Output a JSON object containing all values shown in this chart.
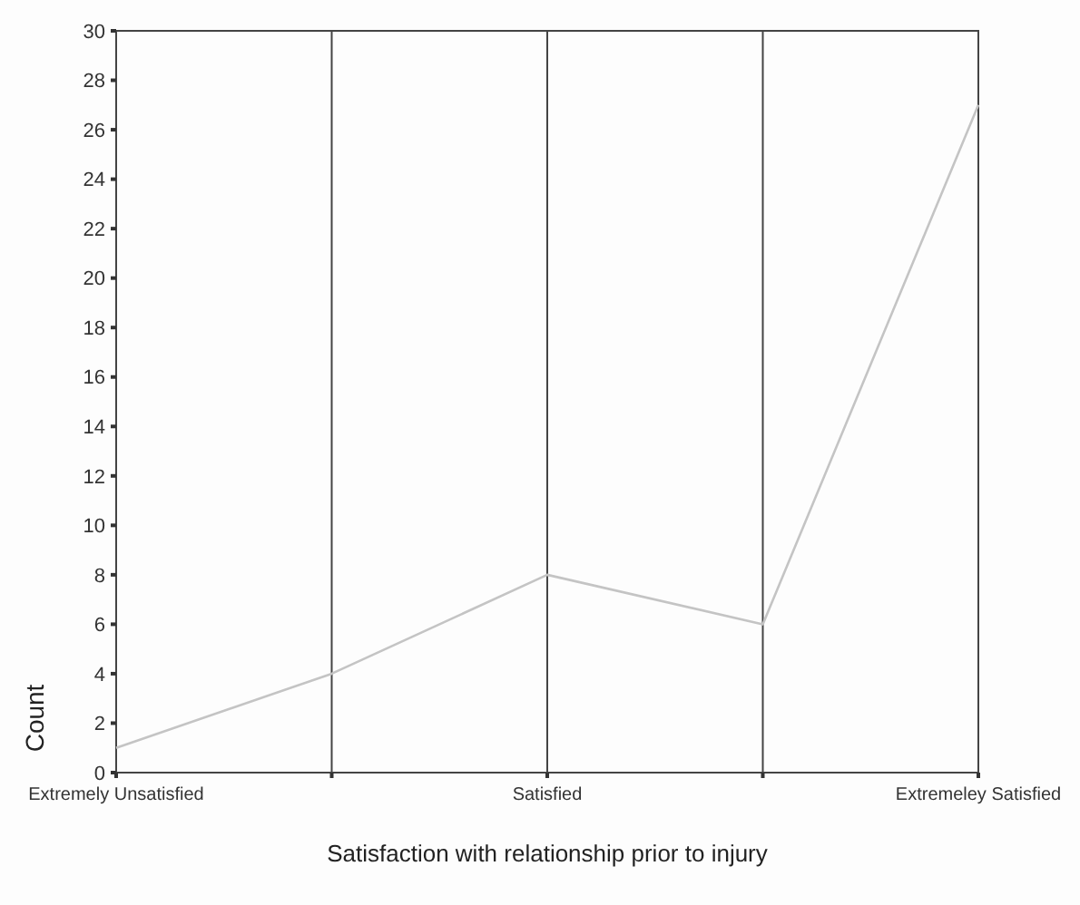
{
  "chart_data": {
    "type": "line",
    "xlabel": "Satisfaction with relationship prior to injury",
    "ylabel": "Count",
    "categories": [
      "Extremely Unsatisfied",
      null,
      "Satisfied",
      null,
      "Extremeley Satisfied"
    ],
    "series": [
      {
        "color": "#c4c4c4",
        "values": [
          1,
          4,
          8,
          6,
          27
        ]
      }
    ],
    "ylim": [
      0,
      30
    ],
    "yticks": [
      0,
      2,
      4,
      6,
      8,
      10,
      12,
      14,
      16,
      18,
      20,
      22,
      24,
      26,
      28,
      30
    ],
    "grid": "x",
    "marker": "none",
    "line_style": "solid"
  }
}
